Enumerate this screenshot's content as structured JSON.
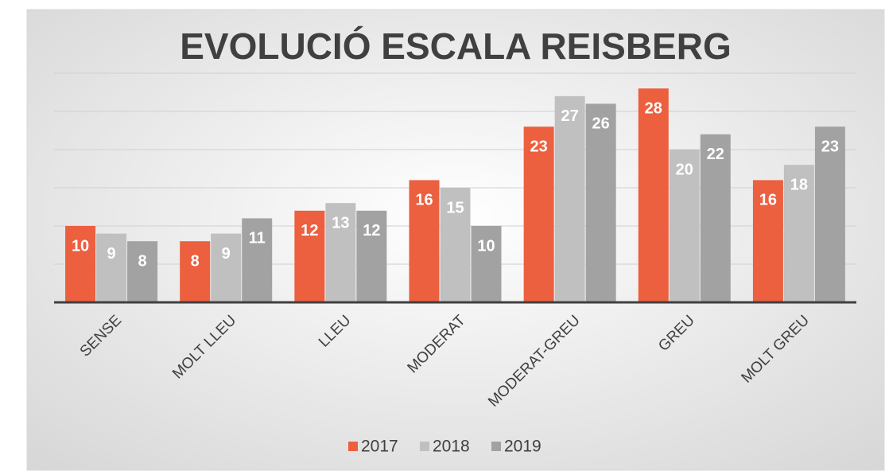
{
  "chart_data": {
    "type": "bar",
    "title": "EVOLUCIÓ ESCALA REISBERG",
    "categories": [
      "SENSE",
      "MOLT LLEU",
      "LLEU",
      "MODERAT",
      "MODERAT-GREU",
      "GREU",
      "MOLT GREU"
    ],
    "series": [
      {
        "name": "2017",
        "color": "#ec5f3f",
        "values": [
          10,
          8,
          12,
          16,
          23,
          28,
          16
        ]
      },
      {
        "name": "2018",
        "color": "#c0c0c0",
        "values": [
          9,
          9,
          13,
          15,
          27,
          20,
          18
        ]
      },
      {
        "name": "2019",
        "color": "#a2a2a2",
        "values": [
          8,
          11,
          12,
          10,
          26,
          22,
          23
        ]
      }
    ],
    "ylim": [
      0,
      30
    ],
    "yticks": [
      0,
      5,
      10,
      15,
      20,
      25,
      30
    ],
    "grid": true,
    "legend": "bottom"
  }
}
